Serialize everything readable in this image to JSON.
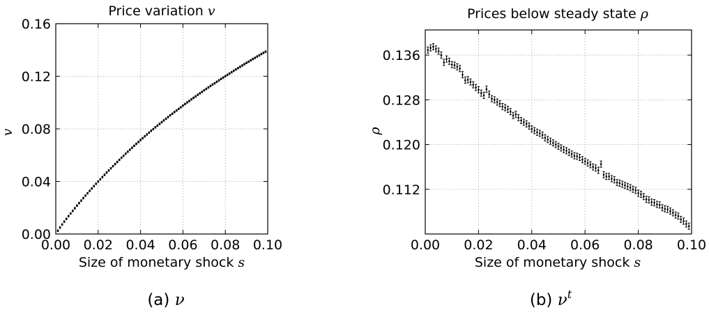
{
  "chart_data": [
    {
      "type": "scatter",
      "title": "Price variation",
      "title_symbol": "v",
      "xlabel": "Size of monetary shock",
      "xlabel_symbol": "s",
      "ylabel": "v",
      "xlim": [
        0.0,
        0.1
      ],
      "ylim": [
        0.0,
        0.16
      ],
      "xticks": [
        "0.00",
        "0.02",
        "0.04",
        "0.06",
        "0.08",
        "0.10"
      ],
      "yticks": [
        "0.00",
        "0.04",
        "0.08",
        "0.12",
        "0.16"
      ],
      "grid": true,
      "caption": "(a)",
      "caption_symbol": "ν",
      "series": [
        {
          "marker": "small error bars",
          "color": "#000000",
          "x": [
            0.001,
            0.002,
            0.003,
            0.004,
            0.005,
            0.006,
            0.007,
            0.008,
            0.009,
            0.01,
            0.011,
            0.012,
            0.013,
            0.014,
            0.015,
            0.016,
            0.017,
            0.018,
            0.019,
            0.02,
            0.021,
            0.022,
            0.023,
            0.024,
            0.025,
            0.026,
            0.027,
            0.028,
            0.029,
            0.03,
            0.031,
            0.032,
            0.033,
            0.034,
            0.035,
            0.036,
            0.037,
            0.038,
            0.039,
            0.04,
            0.041,
            0.042,
            0.043,
            0.044,
            0.045,
            0.046,
            0.047,
            0.048,
            0.049,
            0.05,
            0.051,
            0.052,
            0.053,
            0.054,
            0.055,
            0.056,
            0.057,
            0.058,
            0.059,
            0.06,
            0.061,
            0.062,
            0.063,
            0.064,
            0.065,
            0.066,
            0.067,
            0.068,
            0.069,
            0.07,
            0.071,
            0.072,
            0.073,
            0.074,
            0.075,
            0.076,
            0.077,
            0.078,
            0.079,
            0.08,
            0.081,
            0.082,
            0.083,
            0.084,
            0.085,
            0.086,
            0.087,
            0.088,
            0.089,
            0.09,
            0.091,
            0.092,
            0.093,
            0.094,
            0.095,
            0.096,
            0.097,
            0.098,
            0.099
          ],
          "y": [
            0.0025,
            0.0049,
            0.0072,
            0.0094,
            0.0115,
            0.0136,
            0.0156,
            0.0176,
            0.0196,
            0.0216,
            0.0235,
            0.0254,
            0.0273,
            0.0292,
            0.031,
            0.0328,
            0.0346,
            0.0364,
            0.0382,
            0.0399,
            0.0416,
            0.0433,
            0.045,
            0.0467,
            0.0483,
            0.05,
            0.0516,
            0.0532,
            0.0548,
            0.0564,
            0.058,
            0.0595,
            0.0611,
            0.0626,
            0.0641,
            0.0656,
            0.0671,
            0.0686,
            0.07,
            0.0715,
            0.0729,
            0.0743,
            0.0757,
            0.0771,
            0.0785,
            0.0798,
            0.0812,
            0.0825,
            0.0838,
            0.0851,
            0.0864,
            0.0877,
            0.089,
            0.0903,
            0.0915,
            0.0928,
            0.094,
            0.0952,
            0.0964,
            0.0977,
            0.0989,
            0.1001,
            0.1012,
            0.1024,
            0.1036,
            0.1047,
            0.1059,
            0.107,
            0.1081,
            0.1093,
            0.1104,
            0.1115,
            0.1126,
            0.1137,
            0.1147,
            0.1158,
            0.1169,
            0.118,
            0.119,
            0.12,
            0.1211,
            0.1221,
            0.1231,
            0.1242,
            0.1252,
            0.1262,
            0.1272,
            0.1282,
            0.1292,
            0.1302,
            0.1311,
            0.1321,
            0.1331,
            0.134,
            0.135,
            0.1359,
            0.1369,
            0.1378,
            0.1387
          ]
        }
      ]
    },
    {
      "type": "scatter",
      "title": "Prices below steady state",
      "title_symbol": "ρ",
      "xlabel": "Size of monetary shock",
      "xlabel_symbol": "s",
      "ylabel": "ρ",
      "xlim": [
        0.0,
        0.1
      ],
      "ylim": [
        0.104,
        0.1405
      ],
      "xticks": [
        "0.00",
        "0.02",
        "0.04",
        "0.06",
        "0.08",
        "0.10"
      ],
      "yticks": [
        "0.112",
        "0.120",
        "0.128",
        "0.136"
      ],
      "grid": true,
      "caption": "(b)",
      "caption_symbol": "ν",
      "caption_superscript": "t",
      "series": [
        {
          "marker": "error bars",
          "color": "#000000",
          "x": [
            0.001,
            0.002,
            0.003,
            0.004,
            0.005,
            0.006,
            0.007,
            0.008,
            0.009,
            0.01,
            0.011,
            0.012,
            0.013,
            0.014,
            0.015,
            0.016,
            0.017,
            0.018,
            0.019,
            0.02,
            0.021,
            0.022,
            0.023,
            0.024,
            0.025,
            0.026,
            0.027,
            0.028,
            0.029,
            0.03,
            0.031,
            0.032,
            0.033,
            0.034,
            0.035,
            0.036,
            0.037,
            0.038,
            0.039,
            0.04,
            0.041,
            0.042,
            0.043,
            0.044,
            0.045,
            0.046,
            0.047,
            0.048,
            0.049,
            0.05,
            0.051,
            0.052,
            0.053,
            0.054,
            0.055,
            0.056,
            0.057,
            0.058,
            0.059,
            0.06,
            0.061,
            0.062,
            0.063,
            0.064,
            0.065,
            0.066,
            0.067,
            0.068,
            0.069,
            0.07,
            0.071,
            0.072,
            0.073,
            0.074,
            0.075,
            0.076,
            0.077,
            0.078,
            0.079,
            0.08,
            0.081,
            0.082,
            0.083,
            0.084,
            0.085,
            0.086,
            0.087,
            0.088,
            0.089,
            0.09,
            0.091,
            0.092,
            0.093,
            0.094,
            0.095,
            0.096,
            0.097,
            0.098,
            0.099
          ],
          "y": [
            0.1369,
            0.1373,
            0.1375,
            0.1371,
            0.1367,
            0.136,
            0.1347,
            0.1353,
            0.1349,
            0.1343,
            0.1342,
            0.1339,
            0.1336,
            0.1325,
            0.1315,
            0.1316,
            0.1312,
            0.1307,
            0.1302,
            0.1298,
            0.1292,
            0.1288,
            0.1299,
            0.129,
            0.1282,
            0.128,
            0.1276,
            0.1273,
            0.1268,
            0.1266,
            0.1263,
            0.1259,
            0.1252,
            0.1254,
            0.1248,
            0.1243,
            0.124,
            0.1237,
            0.1233,
            0.1228,
            0.1225,
            0.1222,
            0.122,
            0.1217,
            0.1212,
            0.1209,
            0.1206,
            0.1203,
            0.12,
            0.1197,
            0.1194,
            0.1191,
            0.1189,
            0.1186,
            0.1183,
            0.118,
            0.1179,
            0.1177,
            0.1173,
            0.117,
            0.1167,
            0.1164,
            0.116,
            0.1158,
            0.1154,
            0.1165,
            0.1146,
            0.1143,
            0.1143,
            0.1139,
            0.1137,
            0.1132,
            0.1131,
            0.1129,
            0.1127,
            0.1125,
            0.1123,
            0.112,
            0.1118,
            0.1113,
            0.1111,
            0.1107,
            0.1102,
            0.1101,
            0.1097,
            0.1096,
            0.1093,
            0.1092,
            0.1087,
            0.1085,
            0.1084,
            0.1081,
            0.1078,
            0.1074,
            0.1072,
            0.1066,
            0.1063,
            0.1058,
            0.1054
          ]
        }
      ]
    }
  ]
}
